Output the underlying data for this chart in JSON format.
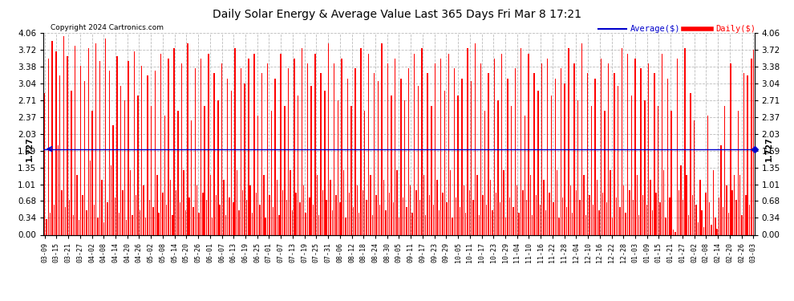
{
  "title": "Daily Solar Energy & Average Value Last 365 Days Fri Mar 8 17:21",
  "copyright": "Copyright 2024 Cartronics.com",
  "average_value": 1.727,
  "average_label": "1.727",
  "y_max": 4.06,
  "y_min": 0.0,
  "y_ticks": [
    0.0,
    0.34,
    0.68,
    1.01,
    1.35,
    1.69,
    2.03,
    2.37,
    2.71,
    3.04,
    3.38,
    3.72,
    4.06
  ],
  "bar_color": "#ff0000",
  "avg_line_color": "#0000cc",
  "background_color": "#ffffff",
  "grid_color": "#bbbbbb",
  "title_color": "#000000",
  "avg_legend_color": "#0000cc",
  "daily_legend_color": "#ff0000",
  "x_labels": [
    "03-09",
    "03-15",
    "03-21",
    "03-27",
    "04-02",
    "04-08",
    "04-14",
    "04-20",
    "04-26",
    "05-02",
    "05-08",
    "05-14",
    "05-20",
    "05-26",
    "06-01",
    "06-07",
    "06-13",
    "06-19",
    "06-25",
    "07-01",
    "07-07",
    "07-13",
    "07-19",
    "07-25",
    "07-31",
    "08-06",
    "08-12",
    "08-18",
    "08-24",
    "08-30",
    "09-05",
    "09-11",
    "09-17",
    "09-23",
    "09-29",
    "10-05",
    "10-11",
    "10-17",
    "10-23",
    "10-29",
    "11-04",
    "11-10",
    "11-16",
    "11-22",
    "11-28",
    "12-04",
    "12-10",
    "12-16",
    "12-22",
    "12-28",
    "01-03",
    "01-09",
    "01-15",
    "01-21",
    "01-27",
    "02-02",
    "02-08",
    "02-14",
    "02-20",
    "02-26",
    "03-03"
  ],
  "daily_values": [
    2.85,
    0.32,
    3.55,
    0.45,
    3.9,
    0.6,
    3.7,
    1.8,
    3.2,
    0.9,
    4.0,
    0.55,
    3.6,
    0.7,
    2.9,
    0.4,
    3.8,
    1.2,
    0.3,
    3.4,
    0.8,
    3.1,
    0.5,
    3.75,
    1.5,
    2.5,
    0.6,
    3.85,
    0.35,
    3.5,
    1.1,
    0.25,
    3.95,
    0.65,
    3.3,
    1.4,
    2.2,
    0.75,
    3.6,
    0.45,
    3.0,
    0.9,
    2.7,
    0.3,
    3.5,
    1.3,
    0.4,
    3.7,
    0.8,
    2.8,
    0.5,
    3.4,
    1.0,
    0.35,
    3.2,
    0.7,
    2.6,
    0.55,
    3.3,
    1.2,
    0.45,
    3.65,
    0.85,
    2.4,
    0.6,
    3.55,
    1.1,
    0.4,
    3.75,
    0.9,
    2.5,
    0.65,
    3.45,
    1.3,
    0.5,
    3.85,
    0.75,
    2.3,
    0.55,
    3.35,
    1.0,
    0.45,
    3.55,
    0.85,
    2.6,
    0.7,
    3.65,
    1.2,
    0.35,
    3.25,
    0.8,
    2.7,
    0.6,
    3.45,
    1.1,
    0.4,
    3.15,
    0.75,
    2.9,
    0.65,
    3.75,
    1.3,
    0.5,
    3.35,
    0.9,
    3.05,
    0.7,
    3.55,
    1.0,
    0.45,
    3.65,
    0.85,
    2.4,
    0.6,
    3.25,
    1.2,
    0.35,
    3.45,
    0.8,
    2.5,
    0.55,
    3.15,
    1.1,
    0.4,
    3.65,
    0.9,
    2.6,
    0.7,
    3.35,
    1.3,
    0.5,
    3.55,
    0.85,
    2.8,
    0.65,
    3.75,
    1.0,
    0.45,
    3.45,
    0.75,
    3.0,
    0.6,
    3.65,
    1.2,
    0.4,
    3.25,
    0.9,
    2.9,
    0.7,
    3.85,
    1.1,
    0.5,
    3.45,
    0.8,
    2.7,
    0.65,
    3.55,
    1.3,
    0.35,
    3.15,
    0.85,
    2.6,
    0.55,
    3.35,
    1.0,
    0.45,
    3.75,
    0.9,
    2.5,
    0.7,
    3.65,
    1.2,
    0.4,
    3.25,
    0.8,
    3.1,
    0.6,
    3.85,
    1.1,
    0.5,
    3.45,
    0.85,
    2.8,
    0.65,
    3.55,
    1.3,
    0.35,
    3.15,
    0.75,
    2.7,
    0.55,
    3.35,
    1.0,
    0.45,
    3.65,
    0.9,
    3.0,
    0.7,
    3.75,
    1.2,
    0.4,
    3.25,
    0.8,
    2.6,
    0.6,
    3.45,
    1.1,
    0.5,
    3.55,
    0.85,
    2.9,
    0.65,
    3.65,
    1.3,
    0.35,
    3.35,
    0.75,
    2.8,
    0.55,
    3.15,
    1.0,
    0.45,
    3.75,
    0.9,
    3.1,
    0.7,
    3.85,
    1.2,
    0.4,
    3.45,
    0.8,
    2.5,
    0.6,
    3.25,
    1.1,
    0.5,
    3.55,
    0.85,
    2.7,
    0.65,
    3.65,
    1.3,
    0.35,
    3.15,
    0.75,
    2.6,
    0.55,
    3.35,
    1.0,
    0.45,
    3.75,
    0.9,
    2.4,
    0.7,
    3.65,
    1.2,
    0.4,
    3.25,
    0.8,
    2.9,
    0.6,
    3.45,
    1.1,
    0.5,
    3.55,
    0.85,
    2.8,
    0.65,
    3.15,
    1.3,
    0.35,
    3.35,
    0.75,
    3.05,
    0.55,
    3.75,
    1.0,
    0.45,
    3.45,
    0.9,
    2.7,
    0.7,
    3.85,
    1.2,
    0.4,
    3.25,
    0.8,
    2.6,
    0.6,
    3.15,
    1.1,
    0.5,
    3.55,
    0.85,
    2.5,
    0.65,
    3.45,
    1.3,
    0.35,
    3.25,
    0.75,
    3.0,
    0.55,
    3.75,
    1.0,
    0.45,
    3.65,
    0.9,
    2.8,
    0.7,
    3.55,
    1.2,
    0.4,
    3.35,
    0.8,
    2.7,
    0.6,
    3.45,
    1.1,
    0.5,
    3.25,
    0.85,
    2.6,
    0.65,
    3.65,
    1.3,
    0.35,
    3.15,
    0.75,
    2.5,
    0.1,
    0.05,
    3.55,
    0.9,
    1.4,
    0.7,
    3.75,
    1.2,
    0.4,
    2.85,
    0.8,
    2.3,
    0.6,
    0.25,
    1.1,
    0.5,
    0.15,
    0.85,
    2.4,
    0.65,
    0.2,
    1.3,
    0.35,
    0.12,
    0.75,
    1.8,
    0.55,
    2.6,
    1.0,
    0.45,
    3.45,
    0.9,
    1.2,
    0.7,
    2.5,
    1.2,
    0.4,
    3.25,
    0.8,
    3.2,
    0.6,
    3.55,
    3.72
  ]
}
